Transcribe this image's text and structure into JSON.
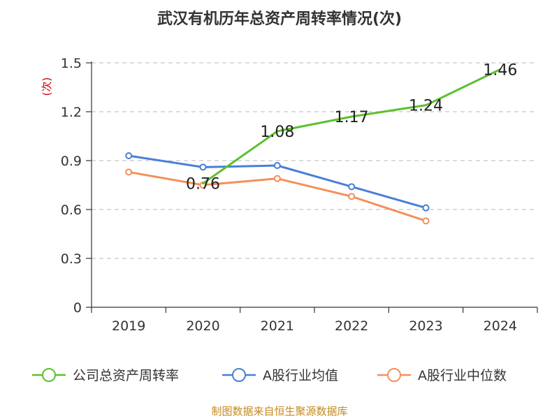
{
  "chart_data": {
    "type": "line",
    "title": "武汉有机历年总资产周转率情况(次)",
    "ylabel": "(次)",
    "xlabel": "",
    "categories": [
      "2019",
      "2020",
      "2021",
      "2022",
      "2023",
      "2024"
    ],
    "ylim": [
      0,
      1.5
    ],
    "yticks": [
      "0",
      "0.3",
      "0.6",
      "0.9",
      "1.2",
      "1.5"
    ],
    "ytick_values": [
      0,
      0.3,
      0.6,
      0.9,
      1.2,
      1.5
    ],
    "grid": "horizontal-dashed",
    "legend_position": "bottom",
    "series": [
      {
        "name": "公司总资产周转率",
        "color": "#5cc02e",
        "values": [
          null,
          0.76,
          1.08,
          1.17,
          1.24,
          1.46
        ],
        "labels": [
          "",
          "0.76",
          "1.08",
          "1.17",
          "1.24",
          "1.46"
        ],
        "show_markers": false
      },
      {
        "name": "A股行业均值",
        "color": "#4a7fd6",
        "values": [
          0.93,
          0.86,
          0.87,
          0.74,
          0.61,
          null
        ],
        "show_markers": true
      },
      {
        "name": "A股行业中位数",
        "color": "#f4905a",
        "values": [
          0.83,
          0.75,
          0.79,
          0.68,
          0.53,
          null
        ],
        "show_markers": true
      }
    ]
  },
  "source_text": "制图数据来自恒生聚源数据库"
}
